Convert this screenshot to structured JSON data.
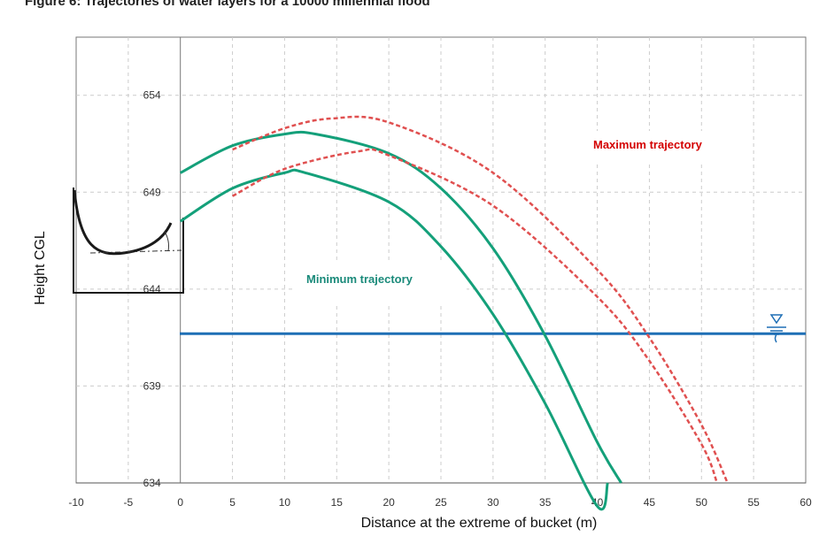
{
  "figure": {
    "title": "Figure 6: Trajectories of water layers for a 10000 millennial flood"
  },
  "chart_data": {
    "type": "line",
    "title": "Figure 6: Trajectories of water layers for a 10000 millennial flood",
    "xlabel": "Distance at the extreme of bucket (m)",
    "ylabel": "Height CGL",
    "xlim": [
      -10,
      60
    ],
    "ylim": [
      634,
      657
    ],
    "x_ticks": [
      -10,
      -5,
      0,
      5,
      10,
      15,
      20,
      25,
      30,
      35,
      40,
      45,
      50,
      55,
      60
    ],
    "y_ticks": [
      634,
      639,
      644,
      649,
      654
    ],
    "grid": true,
    "water_level": 641.7,
    "annotations": [
      {
        "text": "Maximum trajectory",
        "color": "#d40000"
      },
      {
        "text": "Minimum trajectory",
        "color": "#1a8a7a"
      }
    ],
    "series": [
      {
        "style": "solid",
        "color": "#14a07a",
        "x": [
          0,
          5,
          10,
          13,
          20,
          25,
          30,
          35,
          40,
          42.3
        ],
        "y": [
          650.0,
          651.4,
          652.0,
          652.0,
          651.0,
          649.2,
          646.1,
          641.6,
          636.1,
          634.0
        ]
      },
      {
        "style": "solid",
        "color": "#14a07a",
        "x": [
          0,
          5,
          10,
          12,
          20,
          25,
          30,
          35,
          40,
          41.0
        ],
        "y": [
          647.5,
          649.2,
          650.0,
          650.0,
          648.5,
          646.2,
          642.7,
          638.1,
          632.8,
          634.0
        ]
      },
      {
        "style": "dashed",
        "color": "#e05050",
        "x": [
          5,
          10,
          14.5,
          20,
          30,
          40,
          45,
          50,
          52.5
        ],
        "y": [
          651.2,
          652.3,
          652.8,
          652.6,
          650.0,
          645.0,
          641.5,
          637.0,
          634.0
        ]
      },
      {
        "style": "dashed",
        "color": "#e05050",
        "x": [
          5,
          10,
          17,
          20,
          30,
          40,
          45,
          50,
          51.5
        ],
        "y": [
          648.8,
          650.2,
          651.1,
          650.9,
          648.3,
          643.6,
          640.3,
          636.0,
          634.0
        ]
      }
    ]
  }
}
